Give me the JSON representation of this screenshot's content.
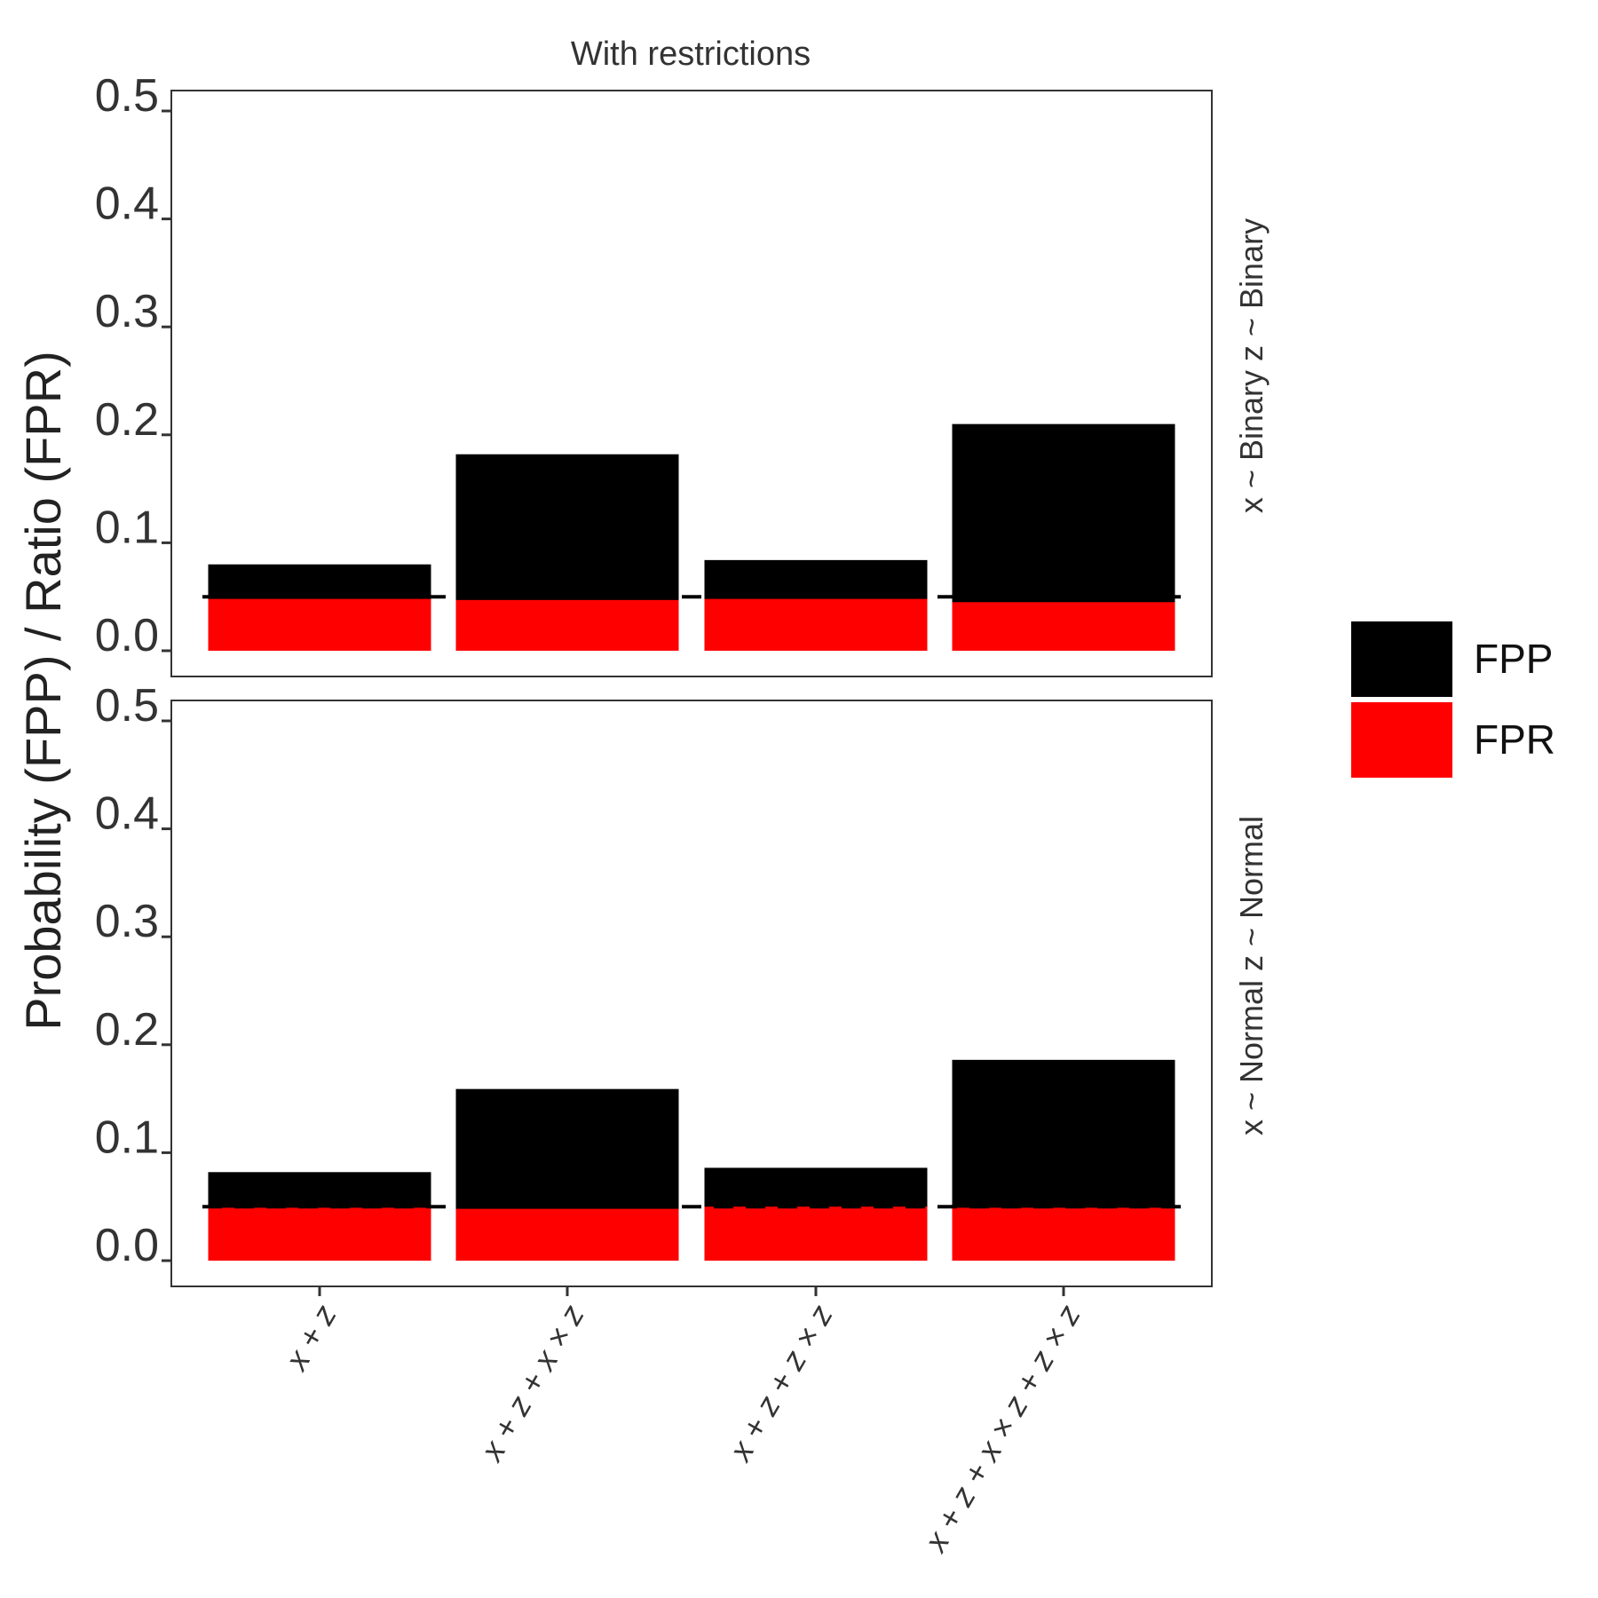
{
  "chart_data": {
    "type": "bar",
    "title": "With restrictions",
    "ylabel": "Probability (FPP) / Ratio (FPR)",
    "xlabel": "",
    "ylim": [
      0,
      0.5
    ],
    "yticks": [
      "0.0",
      "0.1",
      "0.2",
      "0.3",
      "0.4",
      "0.5"
    ],
    "categories": [
      "x + z",
      "x + z + x × z",
      "x + z + z × z",
      "x + z + x × z + z × z"
    ],
    "reference_line": 0.05,
    "legend": {
      "position": "right",
      "entries": [
        {
          "name": "FPP",
          "color": "#000000"
        },
        {
          "name": "FPR",
          "color": "#ff0000"
        }
      ]
    },
    "panels": [
      {
        "strip": "x ~ Binary z ~ Binary",
        "series": [
          {
            "name": "FPP",
            "values": [
              0.08,
              0.182,
              0.084,
              0.21
            ]
          },
          {
            "name": "FPR",
            "values": [
              0.048,
              0.047,
              0.048,
              0.045
            ]
          }
        ]
      },
      {
        "strip": "x ~ Normal z ~ Normal",
        "series": [
          {
            "name": "FPP",
            "values": [
              0.082,
              0.159,
              0.086,
              0.186
            ]
          },
          {
            "name": "FPR",
            "values": [
              0.049,
              0.048,
              0.05,
              0.049
            ]
          }
        ]
      }
    ]
  }
}
